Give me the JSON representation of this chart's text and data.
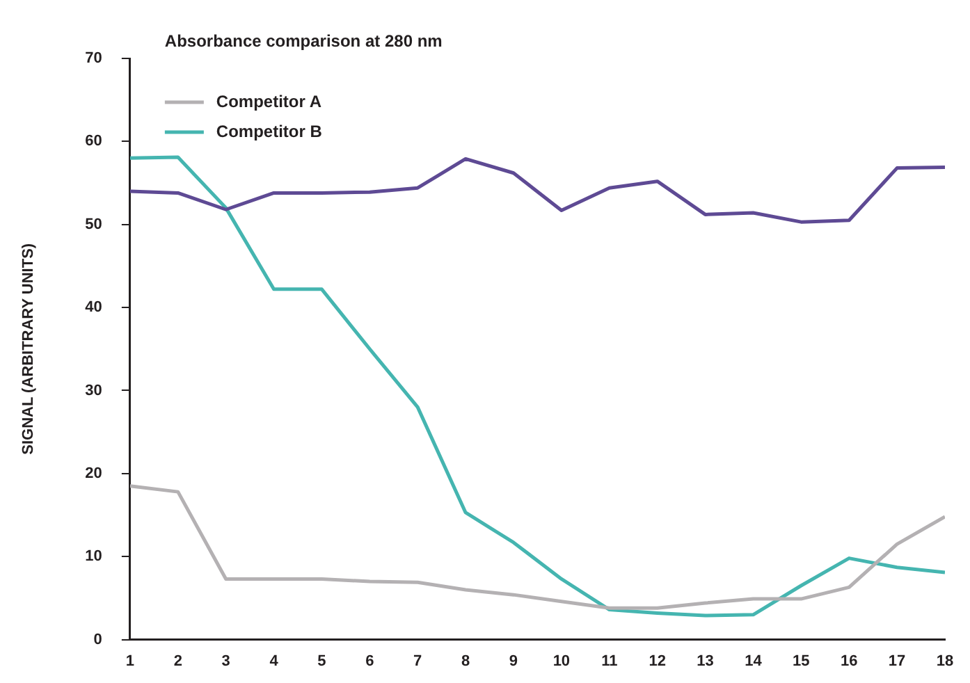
{
  "chart_data": {
    "type": "line",
    "title": "Absorbance comparison at 280 nm",
    "ylabel": "SIGNAL (ARBITRARY UNITS)",
    "x": [
      1,
      2,
      3,
      4,
      5,
      6,
      7,
      8,
      9,
      10,
      11,
      12,
      13,
      14,
      15,
      16,
      17,
      18
    ],
    "series": [
      {
        "color": "#5e4a94",
        "values": [
          54,
          53.8,
          51.8,
          53.8,
          53.8,
          53.9,
          54.4,
          57.9,
          56.2,
          51.7,
          54.4,
          55.2,
          51.2,
          51.4,
          50.3,
          50.5,
          56.8,
          56.9
        ]
      },
      {
        "name": "Competitor A",
        "color": "#b4b1b3",
        "values": [
          18.5,
          17.8,
          7.3,
          7.3,
          7.3,
          7,
          6.9,
          6,
          5.4,
          4.6,
          3.8,
          3.8,
          4.4,
          4.9,
          4.9,
          6.3,
          11.5,
          14.8
        ]
      },
      {
        "name": "Competitor B",
        "color": "#45b5b0",
        "values": [
          58,
          58.1,
          52,
          42.2,
          42.2,
          35,
          28,
          15.3,
          11.7,
          7.3,
          3.6,
          3.2,
          2.9,
          3,
          6.5,
          9.8,
          8.7,
          8.1
        ]
      }
    ],
    "xlim": [
      1,
      18
    ],
    "xticks": [
      1,
      2,
      3,
      4,
      5,
      6,
      7,
      8,
      9,
      10,
      11,
      12,
      13,
      14,
      15,
      16,
      17,
      18
    ],
    "ylim": [
      0,
      70
    ],
    "yticks": [
      0,
      10,
      20,
      30,
      40,
      50,
      60,
      70
    ],
    "grid": false,
    "legend": "top left",
    "marker": "none",
    "line_style": "solid"
  }
}
